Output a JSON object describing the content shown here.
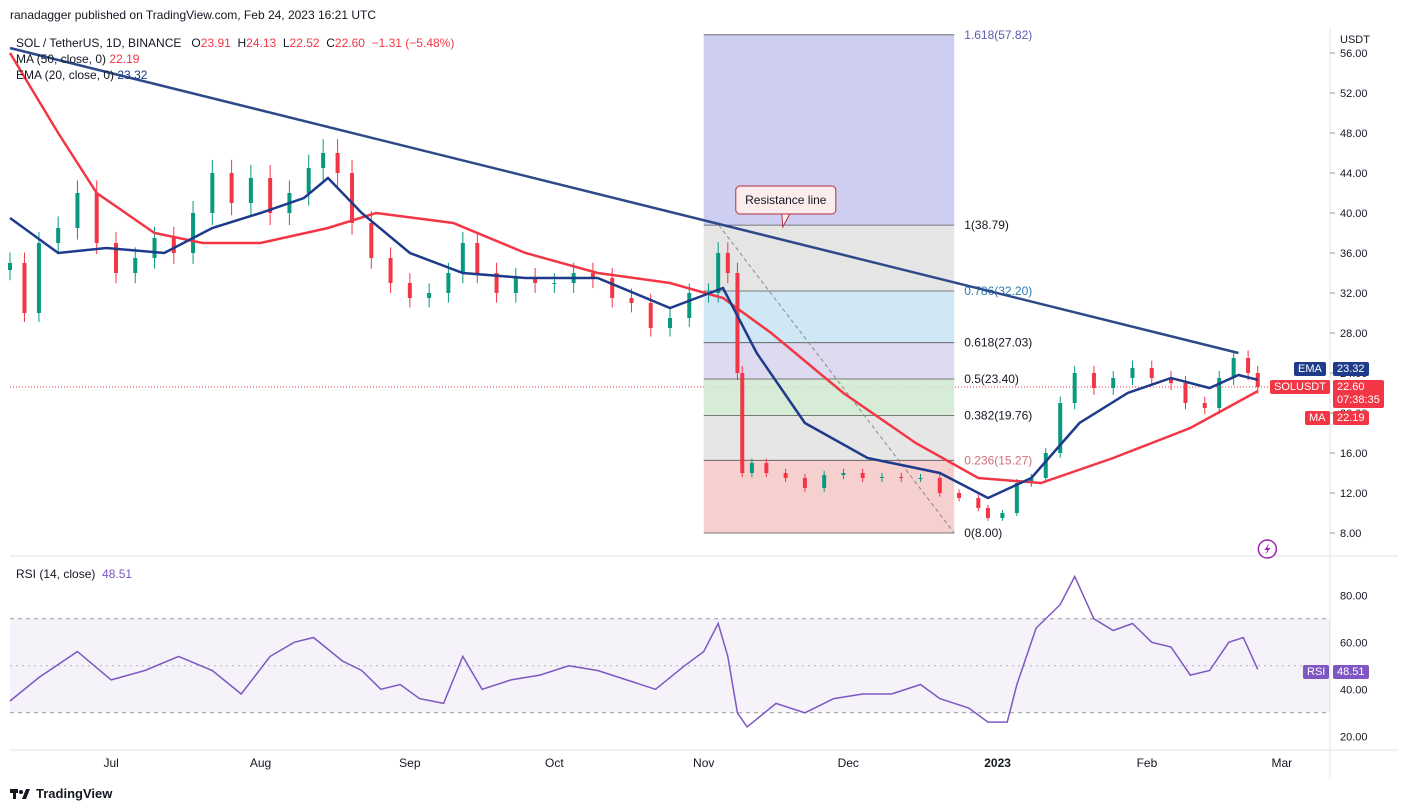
{
  "header": {
    "publisher_text": "ranadagger published on TradingView.com, Feb 24, 2023 16:21 UTC"
  },
  "legend": {
    "symbol": "SOL / TetherUS, 1D, BINANCE",
    "open_label": "O",
    "open": "23.91",
    "high_label": "H",
    "high": "24.13",
    "low_label": "L",
    "low": "22.52",
    "close_label": "C",
    "close": "22.60",
    "change": "−1.31 (−5.48%)",
    "ma_label": "MA (50, close, 0)",
    "ma_value": "22.19",
    "ema_label": "EMA (20, close, 0)",
    "ema_value": "23.32"
  },
  "rsi_legend": {
    "label": "RSI (14, close)",
    "value": "48.51"
  },
  "footer": {
    "brand": "TradingView"
  },
  "price_axis": {
    "unit": "USDT"
  },
  "badges": {
    "ema": {
      "tag": "EMA",
      "value": "23.32"
    },
    "sol": {
      "tag": "SOLUSDT",
      "value": "22.60",
      "timer": "07:38:35"
    },
    "ma": {
      "tag": "MA",
      "value": "22.19"
    },
    "rsi": {
      "tag": "RSI",
      "value": "48.51"
    }
  },
  "annotation": {
    "resistance": "Resistance line"
  },
  "colors": {
    "up": "#089981",
    "down": "#f23645",
    "ema": "#1e3a8a",
    "ma": "#f23645",
    "trend": "#2c4a8a",
    "rsi": "#7e57c2",
    "fib_top": "#c5c6f0",
    "fib_grey": "#e0e0e0"
  },
  "chart_data": {
    "type": "candlestick",
    "title": "SOL / TetherUS, 1D, BINANCE",
    "ylabel": "USDT",
    "y_ticks": [
      "56.00",
      "52.00",
      "48.00",
      "44.00",
      "40.00",
      "36.00",
      "32.00",
      "28.00",
      "24.00",
      "20.00",
      "16.00",
      "12.00",
      "8.00"
    ],
    "x_ticks": [
      "Jul",
      "Aug",
      "Sep",
      "Oct",
      "Nov",
      "Dec",
      "2023",
      "Feb",
      "Mar"
    ],
    "ylim": [
      6.0,
      58.5
    ],
    "last_price": 22.6,
    "fib_levels": [
      {
        "ratio": "1.618",
        "value": 57.82,
        "label": "1.618(57.82)"
      },
      {
        "ratio": "1",
        "value": 38.79,
        "label": "1(38.79)"
      },
      {
        "ratio": "0.786",
        "value": 32.2,
        "label": "0.786(32.20)"
      },
      {
        "ratio": "0.618",
        "value": 27.03,
        "label": "0.618(27.03)"
      },
      {
        "ratio": "0.5",
        "value": 23.4,
        "label": "0.5(23.40)"
      },
      {
        "ratio": "0.382",
        "value": 19.76,
        "label": "0.382(19.76)"
      },
      {
        "ratio": "0.236",
        "value": 15.27,
        "label": "0.236(15.27)"
      },
      {
        "ratio": "0",
        "value": 8.0,
        "label": "0(8.00)"
      }
    ],
    "trendline": {
      "start": {
        "date": "2022-06-10",
        "price": 56.5
      },
      "end": {
        "date": "2023-02-20",
        "price": 26.0
      }
    },
    "close_series": [
      [
        "2022-06-10",
        35.0
      ],
      [
        "2022-06-13",
        30.0
      ],
      [
        "2022-06-16",
        37.0
      ],
      [
        "2022-06-20",
        38.5
      ],
      [
        "2022-06-24",
        42.0
      ],
      [
        "2022-06-28",
        37.0
      ],
      [
        "2022-07-02",
        34.0
      ],
      [
        "2022-07-06",
        35.5
      ],
      [
        "2022-07-10",
        37.5
      ],
      [
        "2022-07-14",
        36.0
      ],
      [
        "2022-07-18",
        40.0
      ],
      [
        "2022-07-22",
        44.0
      ],
      [
        "2022-07-26",
        41.0
      ],
      [
        "2022-07-30",
        43.5
      ],
      [
        "2022-08-03",
        40.0
      ],
      [
        "2022-08-07",
        42.0
      ],
      [
        "2022-08-11",
        44.5
      ],
      [
        "2022-08-14",
        46.0
      ],
      [
        "2022-08-17",
        44.0
      ],
      [
        "2022-08-20",
        39.0
      ],
      [
        "2022-08-24",
        35.5
      ],
      [
        "2022-08-28",
        33.0
      ],
      [
        "2022-09-01",
        31.5
      ],
      [
        "2022-09-05",
        32.0
      ],
      [
        "2022-09-09",
        34.0
      ],
      [
        "2022-09-12",
        37.0
      ],
      [
        "2022-09-15",
        34.0
      ],
      [
        "2022-09-19",
        32.0
      ],
      [
        "2022-09-23",
        33.5
      ],
      [
        "2022-09-27",
        33.0
      ],
      [
        "2022-10-01",
        33.0
      ],
      [
        "2022-10-05",
        34.0
      ],
      [
        "2022-10-09",
        33.5
      ],
      [
        "2022-10-13",
        31.5
      ],
      [
        "2022-10-17",
        31.0
      ],
      [
        "2022-10-21",
        28.5
      ],
      [
        "2022-10-25",
        29.5
      ],
      [
        "2022-10-29",
        32.0
      ],
      [
        "2022-11-02",
        32.0
      ],
      [
        "2022-11-04",
        36.0
      ],
      [
        "2022-11-06",
        34.0
      ],
      [
        "2022-11-08",
        24.0
      ],
      [
        "2022-11-09",
        14.0
      ],
      [
        "2022-11-11",
        15.0
      ],
      [
        "2022-11-14",
        14.0
      ],
      [
        "2022-11-18",
        13.5
      ],
      [
        "2022-11-22",
        12.5
      ],
      [
        "2022-11-26",
        13.8
      ],
      [
        "2022-11-30",
        14.0
      ],
      [
        "2022-12-04",
        13.5
      ],
      [
        "2022-12-08",
        13.6
      ],
      [
        "2022-12-12",
        13.5
      ],
      [
        "2022-12-16",
        13.5
      ],
      [
        "2022-12-20",
        12.0
      ],
      [
        "2022-12-24",
        11.5
      ],
      [
        "2022-12-28",
        10.5
      ],
      [
        "2022-12-30",
        9.5
      ],
      [
        "2023-01-02",
        10.0
      ],
      [
        "2023-01-05",
        13.0
      ],
      [
        "2023-01-08",
        13.5
      ],
      [
        "2023-01-11",
        16.0
      ],
      [
        "2023-01-14",
        21.0
      ],
      [
        "2023-01-17",
        24.0
      ],
      [
        "2023-01-21",
        22.5
      ],
      [
        "2023-01-25",
        23.5
      ],
      [
        "2023-01-29",
        24.5
      ],
      [
        "2023-02-02",
        23.5
      ],
      [
        "2023-02-06",
        23.0
      ],
      [
        "2023-02-09",
        21.0
      ],
      [
        "2023-02-13",
        20.5
      ],
      [
        "2023-02-16",
        23.5
      ],
      [
        "2023-02-19",
        25.5
      ],
      [
        "2023-02-22",
        24.0
      ],
      [
        "2023-02-24",
        22.6
      ]
    ],
    "ma50_series": [
      [
        "2022-06-10",
        56.0
      ],
      [
        "2022-06-20",
        48.0
      ],
      [
        "2022-06-28",
        42.0
      ],
      [
        "2022-07-10",
        38.0
      ],
      [
        "2022-07-20",
        37.0
      ],
      [
        "2022-08-01",
        37.0
      ],
      [
        "2022-08-15",
        38.5
      ],
      [
        "2022-08-25",
        40.0
      ],
      [
        "2022-09-10",
        39.0
      ],
      [
        "2022-09-25",
        36.0
      ],
      [
        "2022-10-10",
        34.0
      ],
      [
        "2022-10-25",
        33.0
      ],
      [
        "2022-11-05",
        31.5
      ],
      [
        "2022-11-15",
        28.0
      ],
      [
        "2022-11-30",
        22.0
      ],
      [
        "2022-12-15",
        17.0
      ],
      [
        "2022-12-28",
        13.5
      ],
      [
        "2023-01-10",
        13.0
      ],
      [
        "2023-01-25",
        15.5
      ],
      [
        "2023-02-10",
        18.5
      ],
      [
        "2023-02-24",
        22.19
      ]
    ],
    "ema20_series": [
      [
        "2022-06-10",
        39.5
      ],
      [
        "2022-06-20",
        36.0
      ],
      [
        "2022-06-30",
        36.5
      ],
      [
        "2022-07-12",
        36.0
      ],
      [
        "2022-07-22",
        38.5
      ],
      [
        "2022-08-01",
        40.0
      ],
      [
        "2022-08-10",
        41.5
      ],
      [
        "2022-08-15",
        43.5
      ],
      [
        "2022-08-22",
        40.0
      ],
      [
        "2022-09-01",
        36.0
      ],
      [
        "2022-09-12",
        34.0
      ],
      [
        "2022-09-25",
        33.5
      ],
      [
        "2022-10-10",
        33.5
      ],
      [
        "2022-10-25",
        30.5
      ],
      [
        "2022-11-05",
        32.5
      ],
      [
        "2022-11-12",
        26.0
      ],
      [
        "2022-11-22",
        19.0
      ],
      [
        "2022-12-05",
        15.5
      ],
      [
        "2022-12-20",
        14.0
      ],
      [
        "2022-12-30",
        11.5
      ],
      [
        "2023-01-08",
        13.5
      ],
      [
        "2023-01-18",
        19.0
      ],
      [
        "2023-01-28",
        22.0
      ],
      [
        "2023-02-06",
        23.5
      ],
      [
        "2023-02-14",
        22.5
      ],
      [
        "2023-02-20",
        23.8
      ],
      [
        "2023-02-24",
        23.32
      ]
    ],
    "rsi": {
      "label": "RSI (14, close)",
      "value": 48.51,
      "y_ticks": [
        "80.00",
        "60.00",
        "40.00",
        "20.00"
      ],
      "ylim": [
        15,
        95
      ],
      "band": [
        30,
        70
      ],
      "series": [
        [
          "2022-06-10",
          35
        ],
        [
          "2022-06-16",
          45
        ],
        [
          "2022-06-24",
          56
        ],
        [
          "2022-07-01",
          44
        ],
        [
          "2022-07-08",
          48
        ],
        [
          "2022-07-15",
          54
        ],
        [
          "2022-07-22",
          48
        ],
        [
          "2022-07-28",
          38
        ],
        [
          "2022-08-03",
          54
        ],
        [
          "2022-08-08",
          60
        ],
        [
          "2022-08-12",
          62
        ],
        [
          "2022-08-18",
          52
        ],
        [
          "2022-08-22",
          48
        ],
        [
          "2022-08-26",
          40
        ],
        [
          "2022-08-30",
          42
        ],
        [
          "2022-09-03",
          36
        ],
        [
          "2022-09-08",
          34
        ],
        [
          "2022-09-12",
          54
        ],
        [
          "2022-09-16",
          40
        ],
        [
          "2022-09-22",
          44
        ],
        [
          "2022-09-28",
          46
        ],
        [
          "2022-10-04",
          50
        ],
        [
          "2022-10-10",
          48
        ],
        [
          "2022-10-16",
          44
        ],
        [
          "2022-10-22",
          40
        ],
        [
          "2022-10-28",
          50
        ],
        [
          "2022-11-01",
          56
        ],
        [
          "2022-11-04",
          68
        ],
        [
          "2022-11-06",
          54
        ],
        [
          "2022-11-08",
          30
        ],
        [
          "2022-11-10",
          24
        ],
        [
          "2022-11-16",
          34
        ],
        [
          "2022-11-22",
          30
        ],
        [
          "2022-11-28",
          36
        ],
        [
          "2022-12-04",
          38
        ],
        [
          "2022-12-10",
          38
        ],
        [
          "2022-12-16",
          42
        ],
        [
          "2022-12-20",
          36
        ],
        [
          "2022-12-26",
          32
        ],
        [
          "2022-12-30",
          26
        ],
        [
          "2023-01-03",
          26
        ],
        [
          "2023-01-05",
          42
        ],
        [
          "2023-01-09",
          66
        ],
        [
          "2023-01-14",
          76
        ],
        [
          "2023-01-17",
          88
        ],
        [
          "2023-01-21",
          70
        ],
        [
          "2023-01-25",
          65
        ],
        [
          "2023-01-29",
          68
        ],
        [
          "2023-02-02",
          60
        ],
        [
          "2023-02-06",
          58
        ],
        [
          "2023-02-10",
          46
        ],
        [
          "2023-02-14",
          48
        ],
        [
          "2023-02-18",
          60
        ],
        [
          "2023-02-21",
          62
        ],
        [
          "2023-02-24",
          48.51
        ]
      ]
    }
  }
}
